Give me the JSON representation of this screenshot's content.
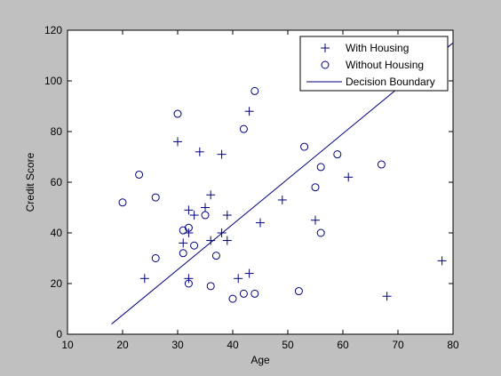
{
  "chart_data": {
    "type": "scatter",
    "title": "",
    "xlabel": "Age",
    "ylabel": "Credit Score",
    "xlim": [
      10,
      80
    ],
    "ylim": [
      0,
      120
    ],
    "xticks": [
      10,
      20,
      30,
      40,
      50,
      60,
      70,
      80
    ],
    "yticks": [
      0,
      20,
      40,
      60,
      80,
      100,
      120
    ],
    "grid": false,
    "legend_position": "top-right",
    "colors": {
      "series": "#00007f",
      "figure_bg": "#c0c0c0",
      "axes_bg": "#ffffff"
    },
    "series": [
      {
        "name": "With Housing",
        "marker": "plus",
        "points": [
          [
            24,
            22
          ],
          [
            30,
            76
          ],
          [
            31,
            36
          ],
          [
            32,
            49
          ],
          [
            32,
            40
          ],
          [
            32,
            22
          ],
          [
            33,
            47
          ],
          [
            34,
            72
          ],
          [
            35,
            50
          ],
          [
            36,
            55
          ],
          [
            36,
            37
          ],
          [
            38,
            71
          ],
          [
            38,
            40
          ],
          [
            39,
            47
          ],
          [
            39,
            37
          ],
          [
            41,
            22
          ],
          [
            43,
            88
          ],
          [
            43,
            24
          ],
          [
            45,
            44
          ],
          [
            49,
            53
          ],
          [
            55,
            45
          ],
          [
            61,
            62
          ],
          [
            68,
            15
          ],
          [
            78,
            29
          ]
        ]
      },
      {
        "name": "Without Housing",
        "marker": "circle",
        "points": [
          [
            20,
            52
          ],
          [
            23,
            63
          ],
          [
            26,
            54
          ],
          [
            26,
            30
          ],
          [
            30,
            87
          ],
          [
            31,
            41
          ],
          [
            31,
            32
          ],
          [
            32,
            42
          ],
          [
            32,
            20
          ],
          [
            33,
            35
          ],
          [
            35,
            47
          ],
          [
            36,
            19
          ],
          [
            37,
            31
          ],
          [
            40,
            14
          ],
          [
            42,
            81
          ],
          [
            42,
            16
          ],
          [
            44,
            96
          ],
          [
            44,
            16
          ],
          [
            52,
            17
          ],
          [
            53,
            74
          ],
          [
            55,
            58
          ],
          [
            56,
            66
          ],
          [
            56,
            40
          ],
          [
            59,
            71
          ],
          [
            67,
            67
          ]
        ]
      },
      {
        "name": "Decision Boundary",
        "marker": "line",
        "points": [
          [
            18,
            4
          ],
          [
            80,
            115
          ]
        ]
      }
    ]
  }
}
